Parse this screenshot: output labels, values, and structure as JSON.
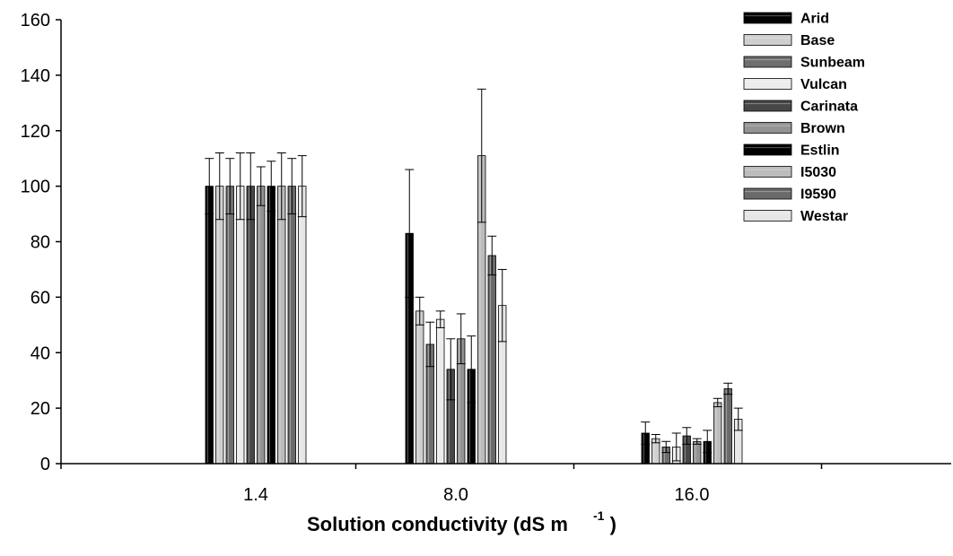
{
  "chart_data": {
    "type": "bar",
    "title": "",
    "xlabel": "Solution conductivity (dS m",
    "xlabel_superscript": "-1",
    "xlabel_close": ")",
    "ylabel": "",
    "ylim": [
      0,
      160
    ],
    "yticks": [
      "0",
      "20",
      "40",
      "60",
      "80",
      "100",
      "120",
      "140",
      "160"
    ],
    "categories": [
      "1.4",
      "8.0",
      "16.0"
    ],
    "grid": false,
    "legend_position": "top-right",
    "series": [
      {
        "name": "Arid",
        "color": "#000000",
        "values": [
          100,
          83,
          11
        ],
        "errors": [
          10,
          23,
          4
        ]
      },
      {
        "name": "Base",
        "color": "#cfcfcf",
        "values": [
          100,
          55,
          9
        ],
        "errors": [
          12,
          5,
          1.5
        ]
      },
      {
        "name": "Sunbeam",
        "color": "#6e6e6e",
        "values": [
          100,
          43,
          6
        ],
        "errors": [
          10,
          8,
          2
        ]
      },
      {
        "name": "Vulcan",
        "color": "#ececec",
        "values": [
          100,
          52,
          6
        ],
        "errors": [
          12,
          3,
          5
        ]
      },
      {
        "name": "Carinata",
        "color": "#474747",
        "values": [
          100,
          34,
          10
        ],
        "errors": [
          12,
          11,
          3
        ]
      },
      {
        "name": "Brown",
        "color": "#939393",
        "values": [
          100,
          45,
          8
        ],
        "errors": [
          7,
          9,
          1
        ]
      },
      {
        "name": "Estlin",
        "color": "#000000",
        "values": [
          100,
          34,
          8
        ],
        "errors": [
          9,
          12,
          4
        ]
      },
      {
        "name": "I5030",
        "color": "#bcbcbc",
        "values": [
          100,
          111,
          22
        ],
        "errors": [
          12,
          24,
          1.5
        ]
      },
      {
        "name": "I9590",
        "color": "#6a6a6a",
        "values": [
          100,
          75,
          27
        ],
        "errors": [
          10,
          7,
          2
        ]
      },
      {
        "name": "Westar",
        "color": "#e6e6e6",
        "values": [
          100,
          57,
          16
        ],
        "errors": [
          11,
          13,
          4
        ]
      }
    ]
  }
}
